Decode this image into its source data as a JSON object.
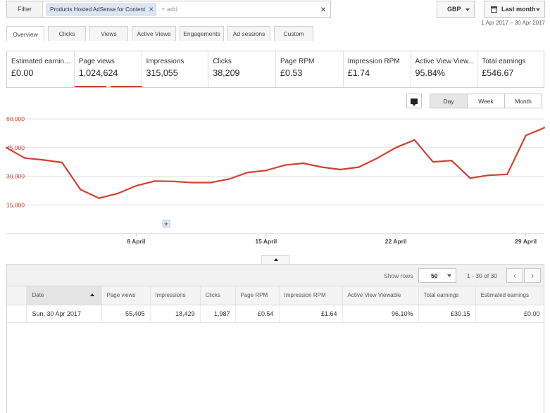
{
  "filter": {
    "label": "Filter",
    "chip": "Products Hosted AdSense for Content",
    "add_placeholder": "+ add"
  },
  "currency": "GBP",
  "date_range": {
    "label": "Last month",
    "dates": "1 Apr 2017 – 30 Apr 2017"
  },
  "tabs": [
    "Overview",
    "Clicks",
    "Views",
    "Active Views",
    "Engagements",
    "Ad sessions",
    "Custom"
  ],
  "metrics": [
    {
      "title": "Estimated earnin...",
      "value": "£0.00"
    },
    {
      "title": "Page views",
      "value": "1,024,624"
    },
    {
      "title": "Impressions",
      "value": "315,055"
    },
    {
      "title": "Clicks",
      "value": "38,209"
    },
    {
      "title": "Page RPM",
      "value": "£0.53"
    },
    {
      "title": "Impression RPM",
      "value": "£1.74"
    },
    {
      "title": "Active View View...",
      "value": "95.84%"
    },
    {
      "title": "Total earnings",
      "value": "£546.67"
    }
  ],
  "granularity": [
    "Day",
    "Week",
    "Month"
  ],
  "colors": {
    "accent": "#d23f31",
    "grid": "#e3e3e3"
  },
  "chart_data": {
    "type": "line",
    "series": [
      {
        "x": [
          "1 Apr",
          "2 Apr",
          "3 Apr",
          "4 Apr",
          "5 Apr",
          "6 Apr",
          "7 Apr",
          "8 Apr",
          "9 Apr",
          "10 Apr",
          "11 Apr",
          "12 Apr",
          "13 Apr",
          "14 Apr",
          "15 Apr",
          "16 Apr",
          "17 Apr",
          "18 Apr",
          "19 Apr",
          "20 Apr",
          "21 Apr",
          "22 Apr",
          "23 Apr",
          "24 Apr",
          "25 Apr",
          "26 Apr",
          "27 Apr",
          "28 Apr",
          "29 Apr",
          "30 Apr"
        ],
        "values": [
          45000,
          39500,
          38500,
          37200,
          23000,
          18500,
          21000,
          25000,
          27500,
          27300,
          26700,
          26700,
          28500,
          32000,
          33000,
          35800,
          36800,
          34800,
          33500,
          34800,
          39500,
          45000,
          49000,
          37500,
          38200,
          29000,
          30500,
          31000,
          51300,
          55400
        ]
      }
    ],
    "y_ticks": [
      "15,000",
      "30,000",
      "45,000",
      "60,000"
    ],
    "y_tick_values": [
      15000,
      30000,
      45000,
      60000
    ],
    "x_ticks": [
      "8 April",
      "15 April",
      "22 April",
      "29 April"
    ],
    "x_tick_days": [
      8,
      15,
      22,
      29
    ],
    "ylim": [
      0,
      60000
    ],
    "grid": true
  },
  "table": {
    "show_rows_label": "Show rows",
    "rows_value": "50",
    "page_info": "1 - 30 of 30",
    "columns": [
      "Date",
      "Page views",
      "Impressions",
      "Clicks",
      "Page RPM",
      "Impression RPM",
      "Active View Viewable",
      "Total earnings",
      "Estimated earnings"
    ],
    "rows": [
      [
        "Sun, 30 Apr 2017",
        "55,405",
        "18,429",
        "1,987",
        "£0.54",
        "£1.64",
        "96.10%",
        "£30.15",
        "£0.00"
      ]
    ]
  }
}
